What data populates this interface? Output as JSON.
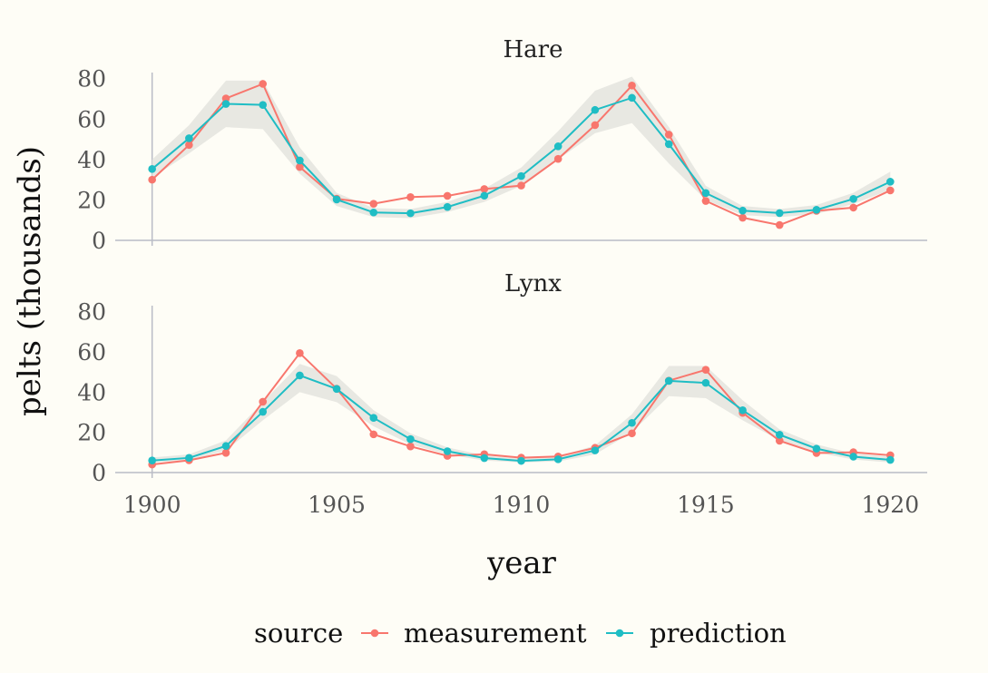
{
  "chart_data": {
    "type": "line",
    "xlabel": "year",
    "ylabel": "pelts (thousands)",
    "x": [
      1900,
      1901,
      1902,
      1903,
      1904,
      1905,
      1906,
      1907,
      1908,
      1909,
      1910,
      1911,
      1912,
      1913,
      1914,
      1915,
      1916,
      1917,
      1918,
      1919,
      1920
    ],
    "x_ticks": [
      "1900",
      "1905",
      "1910",
      "1915",
      "1920"
    ],
    "y_ticks": [
      "0",
      "20",
      "40",
      "60",
      "80"
    ],
    "xlim": [
      1899.0,
      1921.0
    ],
    "ylim": [
      0,
      83
    ],
    "legend": {
      "title": "source",
      "position": "bottom",
      "entries": [
        "measurement",
        "prediction"
      ]
    },
    "colors": {
      "measurement": "#f8766d",
      "prediction": "#1fbdc4",
      "band": "#e6e6e0",
      "axis": "#b9bcc6"
    },
    "panels": [
      {
        "title": "Hare",
        "series": [
          {
            "name": "measurement",
            "values": [
              30,
              47.2,
              70.2,
              77.4,
              36.3,
              20.6,
              18.1,
              21.4,
              22,
              25.4,
              27.1,
              40.3,
              57,
              76.6,
              52.3,
              19.5,
              11.2,
              7.6,
              14.6,
              16.2,
              24.7
            ]
          },
          {
            "name": "prediction",
            "values": [
              35.3,
              50.5,
              67.5,
              67,
              39.5,
              20.2,
              13.8,
              13.4,
              16.5,
              22.1,
              31.8,
              46.5,
              64.5,
              70.5,
              47.6,
              23.4,
              14.7,
              13.5,
              15.1,
              20.5,
              29
            ]
          }
        ],
        "band": {
          "lower": [
            31,
            43,
            56,
            55,
            33,
            17,
            11.5,
            11,
            14,
            19,
            27,
            40,
            53,
            58,
            38,
            20,
            12.5,
            11.5,
            13,
            18,
            25
          ],
          "upper": [
            40,
            57,
            79,
            79,
            46,
            23.5,
            16,
            15.5,
            19,
            25.5,
            36,
            54,
            74,
            81,
            56,
            27,
            17,
            15.5,
            17.5,
            23.5,
            34
          ]
        }
      },
      {
        "title": "Lynx",
        "series": [
          {
            "name": "measurement",
            "values": [
              4,
              6.1,
              9.8,
              35.2,
              59.4,
              41.7,
              19,
              13,
              8.3,
              9.1,
              7.4,
              8,
              12.3,
              19.5,
              45.7,
              51.1,
              29.7,
              15.8,
              9.7,
              10.1,
              8.6
            ]
          },
          {
            "name": "prediction",
            "values": [
              6,
              7.3,
              13.2,
              30.2,
              48.3,
              41.6,
              27.2,
              16.6,
              10.6,
              7.2,
              5.8,
              6.6,
              11,
              24.7,
              45.6,
              44.6,
              31,
              18.8,
              11.9,
              7.9,
              6.3
            ]
          }
        ],
        "band": {
          "lower": [
            5,
            6,
            11,
            26,
            40,
            35,
            23,
            14,
            9,
            6,
            5,
            5.5,
            9,
            20,
            38,
            37,
            26,
            16,
            10,
            6.5,
            5
          ],
          "upper": [
            7.5,
            9,
            16,
            35,
            54,
            48,
            31,
            19.5,
            12.5,
            8.5,
            7,
            8,
            13.5,
            29,
            53,
            53,
            36,
            21.5,
            14,
            9.5,
            8
          ]
        }
      }
    ]
  }
}
